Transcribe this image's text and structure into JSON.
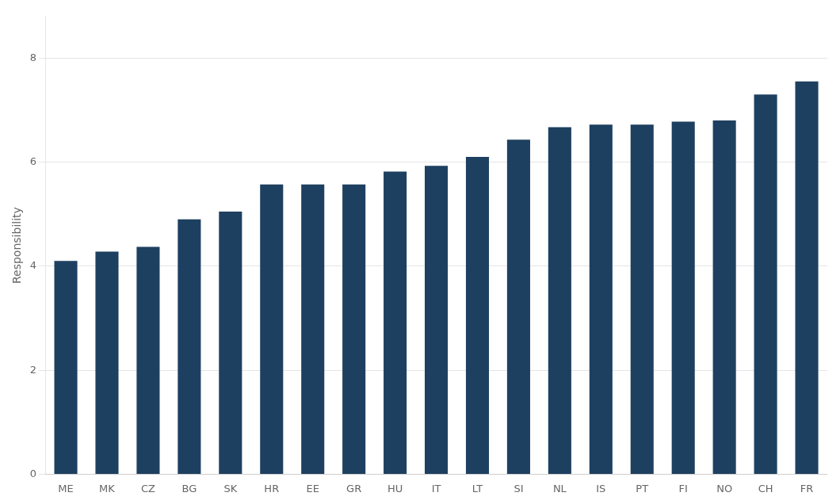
{
  "chart_data": {
    "type": "bar",
    "categories": [
      "ME",
      "MK",
      "CZ",
      "BG",
      "SK",
      "HR",
      "EE",
      "GR",
      "HU",
      "IT",
      "LT",
      "SI",
      "NL",
      "IS",
      "PT",
      "FI",
      "NO",
      "CH",
      "FR"
    ],
    "values": [
      4.1,
      4.28,
      4.37,
      4.9,
      5.05,
      5.57,
      5.57,
      5.57,
      5.82,
      5.93,
      6.1,
      6.43,
      6.67,
      6.72,
      6.72,
      6.78,
      6.8,
      7.3,
      7.55
    ],
    "color": "#1e4060",
    "ylabel": "Responsibility",
    "ylim": [
      0,
      8.8
    ],
    "yticks": [
      0,
      2,
      4,
      6,
      8
    ],
    "grid": true
  }
}
